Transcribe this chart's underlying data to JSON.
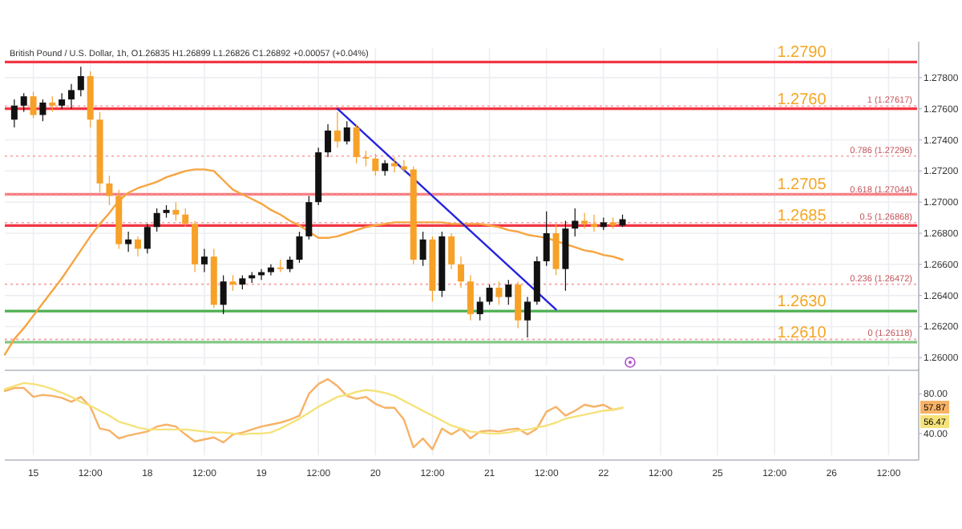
{
  "chart_data": [
    {
      "type": "candlestick",
      "title": "British Pound / U.S. Dollar, 1h, O1.26835 H1.26899 L1.26826 C1.26892 +0.00057 (+0.04%)",
      "categories": [
        null,
        null,
        null,
        null,
        null,
        null,
        null,
        null,
        null,
        null,
        null,
        null,
        null,
        null,
        null,
        null,
        null,
        null,
        null,
        null,
        null,
        null,
        null,
        null,
        null,
        null,
        null,
        null,
        null,
        null,
        null,
        null,
        null,
        null,
        null,
        null,
        null,
        null,
        null,
        null,
        null,
        null,
        null,
        null,
        null,
        null,
        null,
        null,
        null,
        null,
        null,
        null,
        null,
        null,
        null,
        null,
        null,
        null,
        null,
        null,
        null,
        null,
        null,
        null,
        null,
        null,
        null,
        null,
        null,
        null,
        null,
        null,
        null,
        null,
        null,
        null,
        null,
        null,
        null,
        null,
        null,
        null,
        null,
        null,
        null,
        null,
        null,
        null,
        null,
        null,
        null,
        null,
        null,
        null,
        null,
        null,
        null
      ],
      "ohlc": [
        null,
        [
          1.2753,
          1.2766,
          1.2748,
          1.2762
        ],
        [
          1.2762,
          1.277,
          1.2758,
          1.2768
        ],
        [
          1.2768,
          1.2771,
          1.2754,
          1.2756
        ],
        [
          1.2756,
          1.2766,
          1.2752,
          1.2764
        ],
        [
          1.2764,
          1.2768,
          1.2758,
          1.2762
        ],
        [
          1.2762,
          1.277,
          1.276,
          1.2766
        ],
        [
          1.2766,
          1.2776,
          1.276,
          1.2772
        ],
        [
          1.2772,
          1.2787,
          1.2768,
          1.2781
        ],
        [
          1.2781,
          1.2784,
          1.2748,
          1.2753
        ],
        [
          1.2753,
          1.2758,
          1.2706,
          1.2712
        ],
        [
          1.2712,
          1.2717,
          1.2698,
          1.2704
        ],
        [
          1.2704,
          1.2708,
          1.267,
          1.2673
        ],
        [
          1.2673,
          1.2681,
          1.2668,
          1.2676
        ],
        [
          1.2676,
          1.2678,
          1.2665,
          1.267
        ],
        [
          1.267,
          1.2686,
          1.2667,
          1.2684
        ],
        [
          1.2684,
          1.2696,
          1.2681,
          1.2693
        ],
        [
          1.2693,
          1.2698,
          1.269,
          1.2695
        ],
        [
          1.2695,
          1.27,
          1.2688,
          1.2692
        ],
        [
          1.2692,
          1.2696,
          1.2684,
          1.2686
        ],
        [
          1.2686,
          1.2688,
          1.2655,
          1.266
        ],
        [
          1.266,
          1.267,
          1.2655,
          1.2665
        ],
        [
          1.2665,
          1.267,
          1.2632,
          1.2634
        ],
        [
          1.2634,
          1.2653,
          1.2628,
          1.2649
        ],
        [
          1.2649,
          1.2653,
          1.2643,
          1.2647
        ],
        [
          1.2647,
          1.2653,
          1.2644,
          1.2651
        ],
        [
          1.2651,
          1.2655,
          1.2648,
          1.2653
        ],
        [
          1.2653,
          1.2657,
          1.265,
          1.2655
        ],
        [
          1.2655,
          1.266,
          1.2653,
          1.2658
        ],
        [
          1.2658,
          1.2663,
          1.2655,
          1.2657
        ],
        [
          1.2657,
          1.2665,
          1.2655,
          1.2663
        ],
        [
          1.2663,
          1.2681,
          1.2661,
          1.2678
        ],
        [
          1.2678,
          1.2704,
          1.2676,
          1.27
        ],
        [
          1.27,
          1.2735,
          1.2698,
          1.2732
        ],
        [
          1.2732,
          1.275,
          1.2729,
          1.2746
        ],
        [
          1.2746,
          1.2758,
          1.2735,
          1.2739
        ],
        [
          1.2739,
          1.2752,
          1.2737,
          1.2748
        ],
        [
          1.2748,
          1.275,
          1.2725,
          1.2729
        ],
        [
          1.2729,
          1.2733,
          1.2723,
          1.2728
        ],
        [
          1.2728,
          1.2731,
          1.2717,
          1.272
        ],
        [
          1.272,
          1.2727,
          1.2717,
          1.2725
        ],
        [
          1.2725,
          1.2729,
          1.2719,
          1.2723
        ],
        [
          1.2723,
          1.2727,
          1.2719,
          1.2721
        ],
        [
          1.2721,
          1.2723,
          1.266,
          1.2663
        ],
        [
          1.2663,
          1.2681,
          1.2659,
          1.2676
        ],
        [
          1.2676,
          1.2678,
          1.2636,
          1.2643
        ],
        [
          1.2643,
          1.2681,
          1.2639,
          1.2678
        ],
        [
          1.2678,
          1.268,
          1.2657,
          1.266
        ],
        [
          1.266,
          1.2665,
          1.2645,
          1.2649
        ],
        [
          1.2649,
          1.2653,
          1.2624,
          1.2628
        ],
        [
          1.2628,
          1.2639,
          1.2624,
          1.2636
        ],
        [
          1.2636,
          1.2647,
          1.2634,
          1.2645
        ],
        [
          1.2645,
          1.2649,
          1.2634,
          1.2639
        ],
        [
          1.2639,
          1.265,
          1.2634,
          1.2647
        ],
        [
          1.2647,
          1.2649,
          1.2619,
          1.2624
        ],
        [
          1.2624,
          1.2639,
          1.2613,
          1.2636
        ],
        [
          1.2636,
          1.2665,
          1.2634,
          1.2662
        ],
        [
          1.2662,
          1.2694,
          1.2659,
          1.268
        ],
        [
          1.268,
          1.2686,
          1.2653,
          1.2657
        ],
        [
          1.2657,
          1.2688,
          1.2643,
          1.2683
        ],
        [
          1.2683,
          1.2696,
          1.2678,
          1.2688
        ],
        [
          1.2688,
          1.2693,
          1.2683,
          1.2686
        ],
        [
          1.2686,
          1.2692,
          1.2681,
          1.2684
        ],
        [
          1.2684,
          1.269,
          1.2682,
          1.2687
        ],
        [
          1.2687,
          1.269,
          1.2683,
          1.2685
        ],
        [
          1.2685,
          1.2692,
          1.2684,
          1.2689
        ],
        null,
        null,
        null,
        null,
        null,
        null,
        null,
        null,
        null,
        null,
        null,
        null,
        null,
        null,
        null,
        null,
        null,
        null,
        null,
        null,
        null,
        null,
        null,
        null,
        null,
        null,
        null,
        null,
        null,
        null,
        null
      ],
      "series": [
        {
          "type": "line",
          "color": "#f7a440",
          "values": [
            1.2602,
            1.2612,
            1.2619,
            1.2627,
            1.2635,
            1.2643,
            1.2651,
            1.266,
            1.2669,
            1.2678,
            1.2686,
            1.2693,
            1.2701,
            1.2706,
            1.2709,
            1.2711,
            1.2713,
            1.2716,
            1.2718,
            1.272,
            1.2721,
            1.2721,
            1.272,
            1.2714,
            1.2708,
            1.2705,
            1.2702,
            1.2699,
            1.2695,
            1.2692,
            1.2688,
            1.2685,
            1.2681,
            1.2677,
            1.2677,
            1.2678,
            1.268,
            1.2682,
            1.2684,
            1.2685,
            1.2686,
            1.2687,
            1.2687,
            1.2687,
            1.2687,
            1.2687,
            1.2687,
            1.2686,
            1.2686,
            1.2686,
            1.2686,
            1.2685,
            1.2684,
            1.2682,
            1.2681,
            1.2679,
            1.2678,
            1.2677,
            1.2675,
            1.2673,
            1.2671,
            1.2669,
            1.2668,
            1.2666,
            1.2665,
            1.2663,
            null,
            null,
            null,
            null,
            null,
            null,
            null,
            null,
            null,
            null,
            null,
            null,
            null,
            null,
            null,
            null,
            null,
            null,
            null,
            null,
            null,
            null,
            null,
            null,
            null,
            null,
            null,
            null,
            null,
            null,
            null
          ]
        },
        {
          "type": "line",
          "color": "#2424e0",
          "values": [
            null,
            null,
            null,
            null,
            null,
            null,
            null,
            null,
            null,
            null,
            null,
            null,
            null,
            null,
            null,
            null,
            null,
            null,
            null,
            null,
            null,
            null,
            null,
            null,
            null,
            null,
            null,
            null,
            null,
            null,
            null,
            null,
            null,
            null,
            null,
            1.276,
            null,
            null,
            null,
            null,
            null,
            null,
            null,
            null,
            null,
            null,
            null,
            null,
            null,
            null,
            null,
            null,
            null,
            null,
            null,
            null,
            null,
            null,
            1.2631,
            null,
            null,
            null,
            null,
            null,
            null,
            null,
            null,
            null,
            null,
            null,
            null,
            null,
            null,
            null,
            null,
            null,
            null,
            null,
            null,
            null,
            null,
            null,
            null,
            null,
            null,
            null,
            null,
            null,
            null,
            null,
            null,
            null,
            null,
            null,
            null,
            null,
            null
          ]
        }
      ],
      "ref_lines": [
        {
          "axis": "y",
          "value": 1.279,
          "label": "1.2790",
          "color": "#f23645"
        },
        {
          "axis": "y",
          "value": 1.276,
          "label": "1.2760",
          "color": "#f23645"
        },
        {
          "axis": "y",
          "value": 1.2705,
          "label": "1.2705",
          "color": "#f77c80"
        },
        {
          "axis": "y",
          "value": 1.2685,
          "label": "1.2685",
          "color": "#f23645"
        },
        {
          "axis": "y",
          "value": 1.263,
          "label": "1.2630",
          "color": "#4caf50"
        },
        {
          "axis": "y",
          "value": 1.261,
          "label": "1.2610",
          "color": "#81c784"
        },
        {
          "axis": "y",
          "value": 1.27617,
          "label": "1 (1.27617)",
          "color": "#f7a0a4",
          "line_style": "dotted"
        },
        {
          "axis": "y",
          "value": 1.27296,
          "label": "0.786 (1.27296)",
          "color": "#f7a0a4",
          "line_style": "dotted"
        },
        {
          "axis": "y",
          "value": 1.27044,
          "label": "0.618 (1.27044)",
          "color": "#f7a0a4",
          "line_style": "dotted"
        },
        {
          "axis": "y",
          "value": 1.26868,
          "label": "0.5 (1.26868)",
          "color": "#f7a0a4",
          "line_style": "dotted"
        },
        {
          "axis": "y",
          "value": 1.26472,
          "label": "0.236 (1.26472)",
          "color": "#f7a0a4",
          "line_style": "dotted"
        },
        {
          "axis": "y",
          "value": 1.26118,
          "label": "0 (1.26118)",
          "color": "#f7a0a4",
          "line_style": "dotted"
        }
      ],
      "ylim": [
        1.2595,
        1.2799
      ],
      "yticks": [
        {
          "value": 1.26,
          "label": "1.26000"
        },
        {
          "value": 1.262,
          "label": "1.26200"
        },
        {
          "value": 1.264,
          "label": "1.26400"
        },
        {
          "value": 1.266,
          "label": "1.26600"
        },
        {
          "value": 1.268,
          "label": "1.26800"
        },
        {
          "value": 1.27,
          "label": "1.27000"
        },
        {
          "value": 1.272,
          "label": "1.27200"
        },
        {
          "value": 1.274,
          "label": "1.27400"
        },
        {
          "value": 1.276,
          "label": "1.27600"
        },
        {
          "value": 1.278,
          "label": "1.27800"
        }
      ],
      "grid": true,
      "tick_labels": "y"
    },
    {
      "type": "line",
      "annotations": [
        "57.87",
        "56.47"
      ],
      "categories": [
        null,
        null,
        null,
        "15",
        null,
        null,
        null,
        null,
        null,
        "12:00",
        null,
        null,
        null,
        null,
        null,
        "18",
        null,
        null,
        null,
        null,
        null,
        "12:00",
        null,
        null,
        null,
        null,
        null,
        "19",
        null,
        null,
        null,
        null,
        null,
        "12:00",
        null,
        null,
        null,
        null,
        null,
        "20",
        null,
        null,
        null,
        null,
        null,
        "12:00",
        null,
        null,
        null,
        null,
        null,
        "21",
        null,
        null,
        null,
        null,
        null,
        "12:00",
        null,
        null,
        null,
        null,
        null,
        "22",
        null,
        null,
        null,
        null,
        null,
        "12:00",
        null,
        null,
        null,
        null,
        null,
        "25",
        null,
        null,
        null,
        null,
        null,
        "12:00",
        null,
        null,
        null,
        null,
        null,
        "26",
        null,
        null,
        null,
        null,
        null,
        "12:00",
        null,
        null,
        null
      ],
      "series": [
        {
          "color": "#f7b267",
          "values": [
            83,
            86,
            86,
            77,
            79,
            78,
            76,
            72,
            77,
            67,
            45,
            43,
            35,
            38,
            40,
            42,
            47,
            49,
            47,
            39,
            32,
            34,
            36,
            31,
            39,
            41,
            44,
            47,
            49,
            51,
            54,
            58,
            80,
            90,
            95,
            88,
            78,
            75,
            77,
            70,
            66,
            66,
            54,
            26,
            35,
            24,
            45,
            39,
            45,
            35,
            42,
            43,
            42,
            44,
            45,
            39,
            45,
            62,
            67,
            58,
            63,
            69,
            67,
            69,
            64,
            66,
            null,
            null,
            null,
            null,
            null,
            null,
            null,
            null,
            null,
            null,
            null,
            null,
            null,
            null,
            null,
            null,
            null,
            null,
            null,
            null,
            null,
            null,
            null,
            null,
            null,
            null,
            null,
            null,
            null,
            null,
            null
          ]
        },
        {
          "color": "#f5e27a",
          "values": [
            85,
            88,
            91,
            90,
            88,
            85,
            81,
            77,
            72,
            68,
            63,
            58,
            52,
            49,
            46,
            44,
            44,
            44,
            44,
            44,
            43,
            42,
            41,
            41,
            40,
            39,
            40,
            40,
            41,
            45,
            50,
            55,
            61,
            67,
            72,
            77,
            79,
            82,
            84,
            83,
            81,
            78,
            73,
            68,
            63,
            58,
            53,
            48,
            45,
            42,
            41,
            40,
            40,
            41,
            43,
            44,
            46,
            48,
            51,
            55,
            57,
            59,
            61,
            63,
            64,
            66,
            null,
            null,
            null,
            null,
            null,
            null,
            null,
            null,
            null,
            null,
            null,
            null,
            null,
            null,
            null,
            null,
            null,
            null,
            null,
            null,
            null,
            null,
            null,
            null,
            null,
            null,
            null,
            null,
            null,
            null,
            null
          ]
        }
      ],
      "ylim": [
        18,
        99
      ],
      "yticks": [
        {
          "value": 40,
          "label": "40.00"
        },
        {
          "value": 80,
          "label": "80.00"
        }
      ],
      "grid": "x"
    }
  ]
}
